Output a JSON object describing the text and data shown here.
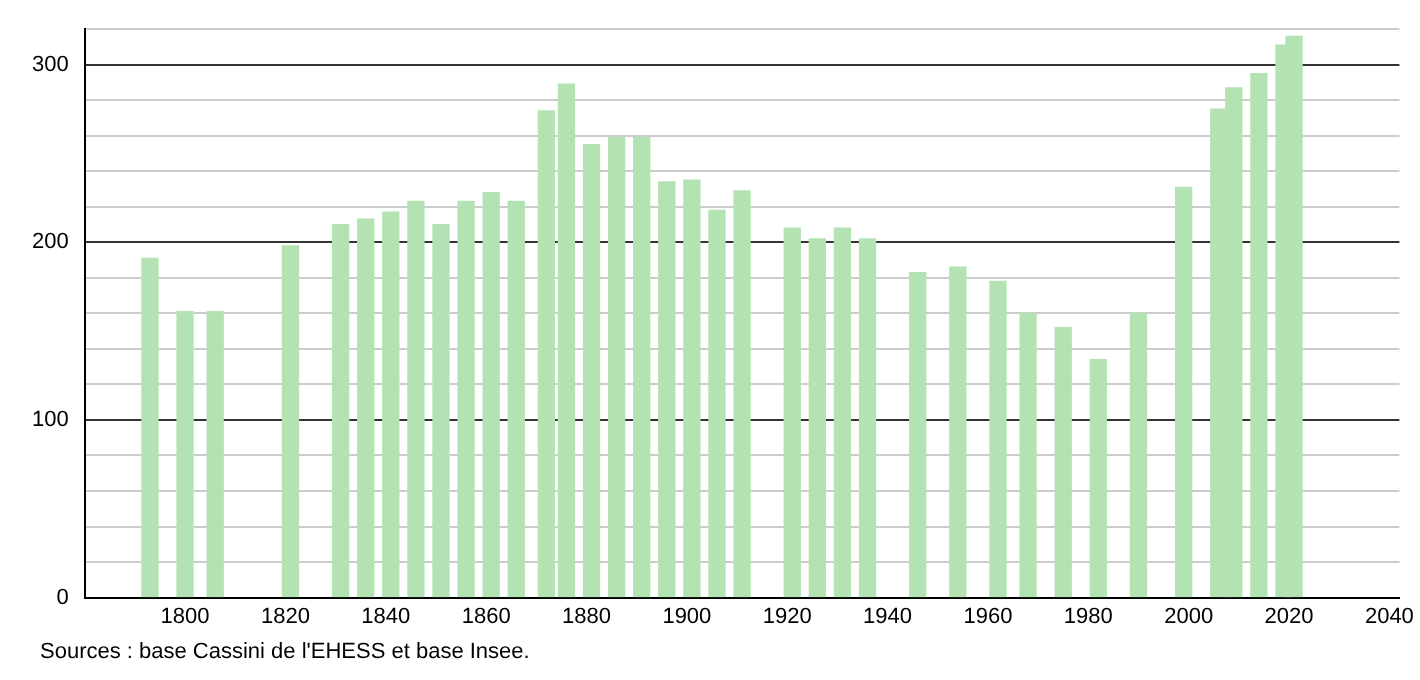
{
  "chart_data": {
    "type": "bar",
    "color": "#b3e3b3",
    "x": [
      1793,
      1800,
      1806,
      1821,
      1831,
      1836,
      1841,
      1846,
      1851,
      1856,
      1861,
      1866,
      1872,
      1876,
      1881,
      1886,
      1891,
      1896,
      1901,
      1906,
      1911,
      1921,
      1926,
      1931,
      1936,
      1946,
      1954,
      1962,
      1968,
      1975,
      1982,
      1990,
      1999,
      2006,
      2009,
      2014,
      2019,
      2021
    ],
    "values": [
      191,
      161,
      161,
      198,
      210,
      213,
      217,
      223,
      210,
      223,
      228,
      223,
      274,
      289,
      255,
      259,
      259,
      234,
      235,
      218,
      229,
      208,
      202,
      208,
      202,
      183,
      186,
      178,
      160,
      152,
      134,
      160,
      231,
      275,
      287,
      295,
      311,
      316
    ],
    "xlim": [
      1780,
      2042
    ],
    "xticks": [
      1800,
      1820,
      1840,
      1860,
      1880,
      1900,
      1920,
      1940,
      1960,
      1980,
      2000,
      2020,
      2040
    ],
    "ylim": [
      0,
      320
    ],
    "yticks": [
      0,
      {
        "value": 20,
        "label": null
      },
      {
        "value": 40,
        "label": null
      },
      {
        "value": 60,
        "label": null
      },
      {
        "value": 80,
        "label": null
      },
      100,
      {
        "value": 120,
        "label": null
      },
      {
        "value": 140,
        "label": null
      },
      {
        "value": 160,
        "label": null
      },
      {
        "value": 180,
        "label": null
      },
      200,
      {
        "value": 220,
        "label": null
      },
      {
        "value": 240,
        "label": null
      },
      {
        "value": 260,
        "label": null
      },
      {
        "value": 280,
        "label": null
      },
      300,
      {
        "value": 320,
        "label": null
      }
    ],
    "grid": "y",
    "annotations": [
      "Sources : base Cassini de l'EHESS et base Insee."
    ]
  }
}
